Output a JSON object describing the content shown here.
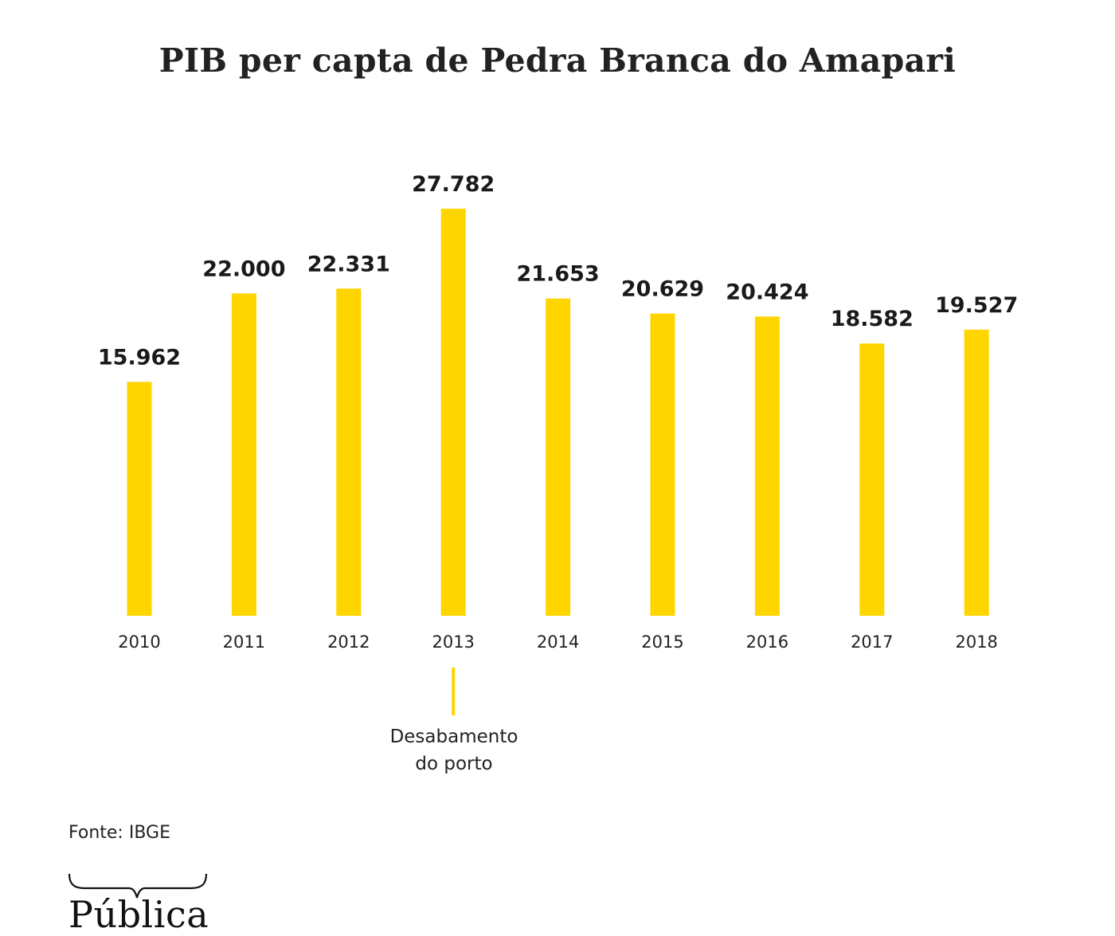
{
  "colors": {
    "bar": "#FFD500",
    "annotation_line": "#FFD500",
    "text": "#1a1a1a"
  },
  "chart_data": {
    "type": "bar",
    "title": "PIB per capta de Pedra Branca do Amapari",
    "categories": [
      "2010",
      "2011",
      "2012",
      "2013",
      "2014",
      "2015",
      "2016",
      "2017",
      "2018"
    ],
    "values": [
      15962,
      22000,
      22331,
      27782,
      21653,
      20629,
      20424,
      18582,
      19527
    ],
    "value_labels": [
      "15.962",
      "22.000",
      "22.331",
      "27.782",
      "21.653",
      "20.629",
      "20.424",
      "18.582",
      "19.527"
    ],
    "ylim": [
      0,
      27782
    ],
    "grid": false,
    "annotation": {
      "category": "2013",
      "lines": [
        "Desabamento",
        "do porto"
      ]
    }
  },
  "source": "Fonte: IBGE",
  "logo": {
    "text": "Pública",
    "icon": "brace-icon"
  }
}
